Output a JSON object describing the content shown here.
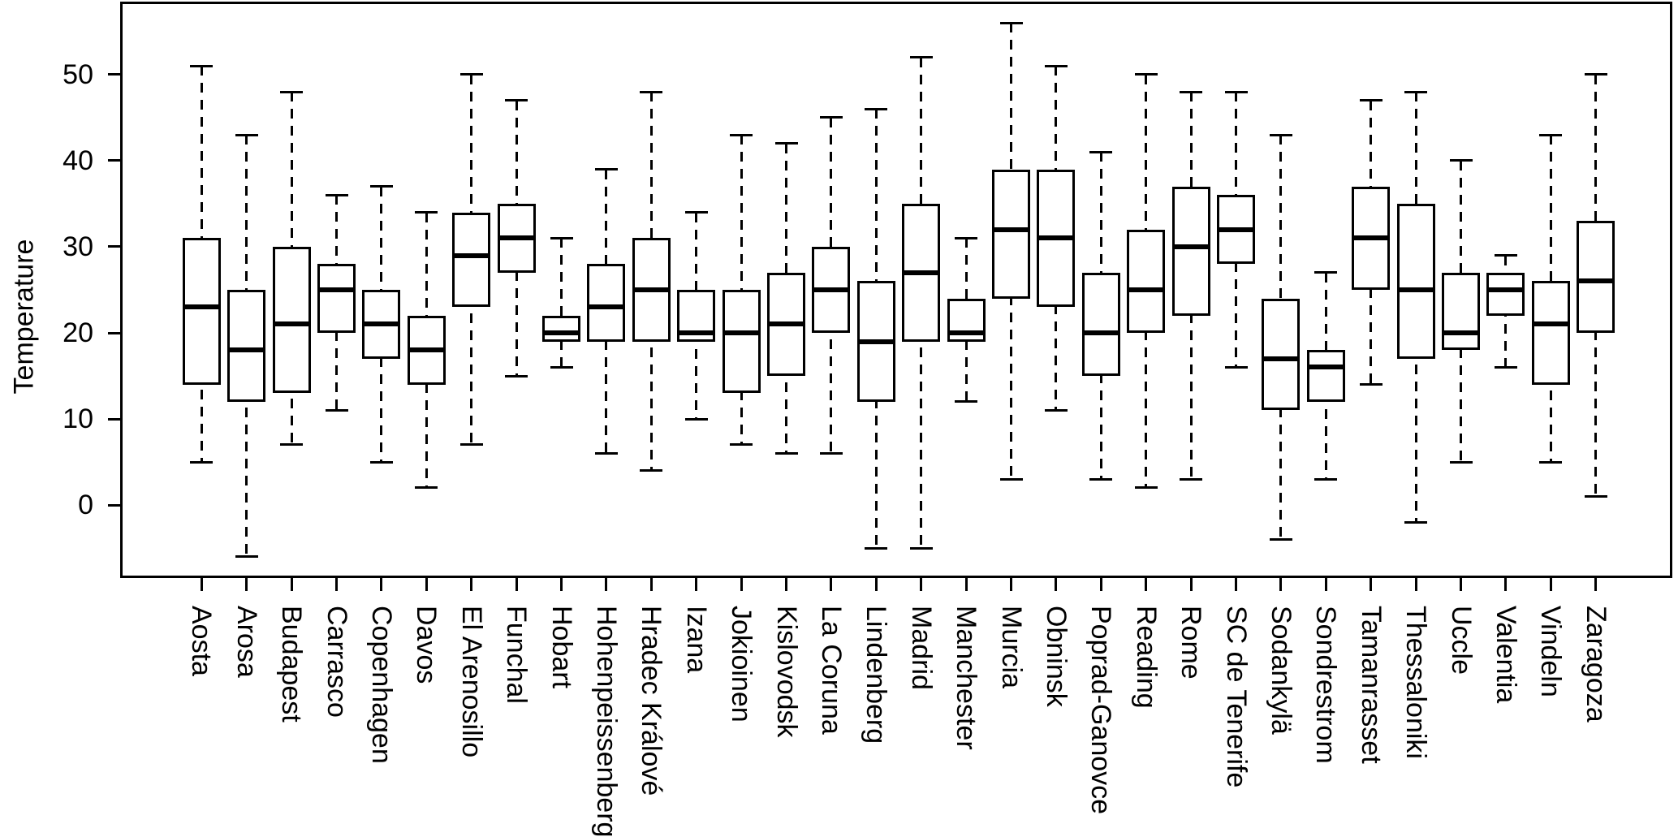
{
  "chart_data": {
    "type": "boxplot",
    "title": "",
    "xlabel": "",
    "ylabel": "Temperature",
    "ylim": [
      -8.5,
      58.5
    ],
    "yticks": [
      0,
      10,
      20,
      30,
      40,
      50
    ],
    "grid": false,
    "legend": "none",
    "categories": [
      "Aosta",
      "Arosa",
      "Budapest",
      "Carrasco",
      "Copenhagen",
      "Davos",
      "El Arenosillo",
      "Funchal",
      "Hobart",
      "Hohenpeissenberg",
      "Hradec Králové",
      "Izana",
      "Jokioinen",
      "Kislovodsk",
      "La Coruna",
      "Lindenberg",
      "Madrid",
      "Manchester",
      "Murcia",
      "Obninsk",
      "Poprad-Ganovce",
      "Reading",
      "Rome",
      "SC de Tenerife",
      "Sodankylä",
      "Sondrestrom",
      "Tamanrasset",
      "Thessaloniki",
      "Uccle",
      "Valentia",
      "Vindeln",
      "Zaragoza"
    ],
    "series": [
      {
        "name": "Aosta",
        "min": 5,
        "q1": 14,
        "median": 23,
        "q3": 31,
        "max": 51
      },
      {
        "name": "Arosa",
        "min": -6,
        "q1": 12,
        "median": 18,
        "q3": 25,
        "max": 43
      },
      {
        "name": "Budapest",
        "min": 7,
        "q1": 13,
        "median": 21,
        "q3": 30,
        "max": 48
      },
      {
        "name": "Carrasco",
        "min": 11,
        "q1": 20,
        "median": 25,
        "q3": 28,
        "max": 36
      },
      {
        "name": "Copenhagen",
        "min": 5,
        "q1": 17,
        "median": 21,
        "q3": 25,
        "max": 37
      },
      {
        "name": "Davos",
        "min": 2,
        "q1": 14,
        "median": 18,
        "q3": 22,
        "max": 34
      },
      {
        "name": "El Arenosillo",
        "min": 7,
        "q1": 23,
        "median": 29,
        "q3": 34,
        "max": 50
      },
      {
        "name": "Funchal",
        "min": 15,
        "q1": 27,
        "median": 31,
        "q3": 35,
        "max": 47
      },
      {
        "name": "Hobart",
        "min": 16,
        "q1": 19,
        "median": 20,
        "q3": 22,
        "max": 31
      },
      {
        "name": "Hohenpeissenberg",
        "min": 6,
        "q1": 19,
        "median": 23,
        "q3": 28,
        "max": 39
      },
      {
        "name": "Hradec Králové",
        "min": 4,
        "q1": 19,
        "median": 25,
        "q3": 31,
        "max": 48
      },
      {
        "name": "Izana",
        "min": 10,
        "q1": 19,
        "median": 20,
        "q3": 25,
        "max": 34
      },
      {
        "name": "Jokioinen",
        "min": 7,
        "q1": 13,
        "median": 20,
        "q3": 25,
        "max": 43
      },
      {
        "name": "Kislovodsk",
        "min": 6,
        "q1": 15,
        "median": 21,
        "q3": 27,
        "max": 42
      },
      {
        "name": "La Coruna",
        "min": 6,
        "q1": 20,
        "median": 25,
        "q3": 30,
        "max": 45
      },
      {
        "name": "Lindenberg",
        "min": -5,
        "q1": 12,
        "median": 19,
        "q3": 26,
        "max": 46
      },
      {
        "name": "Madrid",
        "min": -5,
        "q1": 19,
        "median": 27,
        "q3": 35,
        "max": 52
      },
      {
        "name": "Manchester",
        "min": 12,
        "q1": 19,
        "median": 20,
        "q3": 24,
        "max": 31
      },
      {
        "name": "Murcia",
        "min": 3,
        "q1": 24,
        "median": 32,
        "q3": 39,
        "max": 56
      },
      {
        "name": "Obninsk",
        "min": 11,
        "q1": 23,
        "median": 31,
        "q3": 39,
        "max": 51
      },
      {
        "name": "Poprad-Ganovce",
        "min": 3,
        "q1": 15,
        "median": 20,
        "q3": 27,
        "max": 41
      },
      {
        "name": "Reading",
        "min": 2,
        "q1": 20,
        "median": 25,
        "q3": 32,
        "max": 50
      },
      {
        "name": "Rome",
        "min": 3,
        "q1": 22,
        "median": 30,
        "q3": 37,
        "max": 48
      },
      {
        "name": "SC de Tenerife",
        "min": 16,
        "q1": 28,
        "median": 32,
        "q3": 36,
        "max": 48
      },
      {
        "name": "Sodankylä",
        "min": -4,
        "q1": 11,
        "median": 17,
        "q3": 24,
        "max": 43
      },
      {
        "name": "Sondrestrom",
        "min": 3,
        "q1": 12,
        "median": 16,
        "q3": 18,
        "max": 27
      },
      {
        "name": "Tamanrasset",
        "min": 14,
        "q1": 25,
        "median": 31,
        "q3": 37,
        "max": 47
      },
      {
        "name": "Thessaloniki",
        "min": -2,
        "q1": 17,
        "median": 25,
        "q3": 35,
        "max": 48
      },
      {
        "name": "Uccle",
        "min": 5,
        "q1": 18,
        "median": 20,
        "q3": 27,
        "max": 40
      },
      {
        "name": "Valentia",
        "min": 16,
        "q1": 22,
        "median": 25,
        "q3": 27,
        "max": 29
      },
      {
        "name": "Vindeln",
        "min": 5,
        "q1": 14,
        "median": 21,
        "q3": 26,
        "max": 43
      },
      {
        "name": "Zaragoza",
        "min": 1,
        "q1": 20,
        "median": 26,
        "q3": 33,
        "max": 50
      }
    ]
  }
}
